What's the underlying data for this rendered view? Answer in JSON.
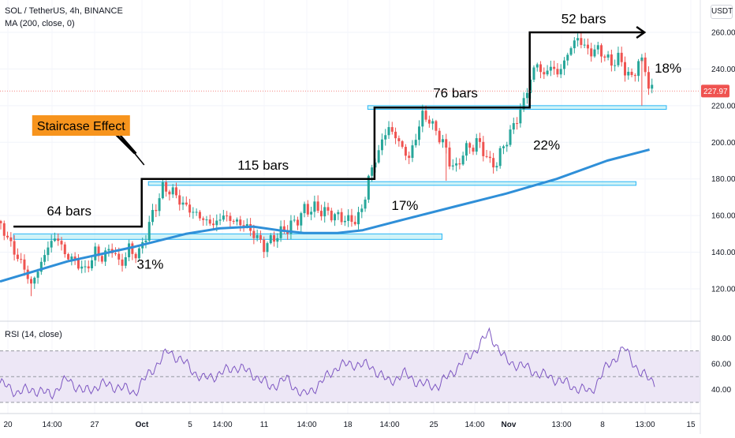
{
  "header": {
    "symbol_line": "SOL / TetherUS, 4h, BINANCE",
    "ma_line": "MA (200, close, 0)",
    "rsi_line": "RSI (14, close)",
    "currency_badge": "USDT"
  },
  "colors": {
    "up": "#26a69a",
    "down": "#ef5350",
    "ma": "#2f8fd8",
    "rsi": "#7e57c2",
    "rsi_band": "#ede7f6",
    "zone_fill": "#b2ebf2",
    "zone_stroke": "#29b6f6",
    "price_badge": "#ef5350",
    "label_box": "#f7941d"
  },
  "chart_data": [
    {
      "type": "candlestick",
      "title": "SOL / TetherUS, 4h, BINANCE",
      "y_unit": "USDT",
      "ylim": [
        105,
        268
      ],
      "yticks": [
        120,
        140,
        160,
        180,
        200,
        220,
        240,
        260
      ],
      "ytick_labels": [
        "120.00",
        "140.00",
        "160.00",
        "180.00",
        "200.00",
        "220.00",
        "240.00",
        "260.00"
      ],
      "x_tick_labels": [
        "20",
        "14:00",
        "27",
        "Oct",
        "5",
        "14:00",
        "11",
        "14:00",
        "18",
        "14:00",
        "25",
        "14:00",
        "Nov",
        "13:00",
        "8",
        "13:00",
        "15"
      ],
      "last_price": "227.97",
      "price_path": [
        {
          "bar": 0,
          "price": 157
        },
        {
          "bar": 5,
          "price": 150
        },
        {
          "bar": 10,
          "price": 140
        },
        {
          "bar": 15,
          "price": 133
        },
        {
          "bar": 20,
          "price": 122
        },
        {
          "bar": 25,
          "price": 132
        },
        {
          "bar": 30,
          "price": 143
        },
        {
          "bar": 35,
          "price": 149
        },
        {
          "bar": 40,
          "price": 139
        },
        {
          "bar": 46,
          "price": 135
        },
        {
          "bar": 52,
          "price": 130
        },
        {
          "bar": 58,
          "price": 140
        },
        {
          "bar": 63,
          "price": 137
        },
        {
          "bar": 68,
          "price": 143
        },
        {
          "bar": 72,
          "price": 133
        },
        {
          "bar": 78,
          "price": 141
        },
        {
          "bar": 84,
          "price": 139
        },
        {
          "bar": 88,
          "price": 150
        },
        {
          "bar": 93,
          "price": 163
        },
        {
          "bar": 98,
          "price": 175
        },
        {
          "bar": 104,
          "price": 173
        },
        {
          "bar": 110,
          "price": 166
        },
        {
          "bar": 116,
          "price": 162
        },
        {
          "bar": 122,
          "price": 158
        },
        {
          "bar": 128,
          "price": 155
        },
        {
          "bar": 134,
          "price": 160
        },
        {
          "bar": 140,
          "price": 157
        },
        {
          "bar": 146,
          "price": 155
        },
        {
          "bar": 152,
          "price": 150
        },
        {
          "bar": 158,
          "price": 143
        },
        {
          "bar": 164,
          "price": 148
        },
        {
          "bar": 170,
          "price": 152
        },
        {
          "bar": 176,
          "price": 156
        },
        {
          "bar": 182,
          "price": 163
        },
        {
          "bar": 188,
          "price": 164
        },
        {
          "bar": 194,
          "price": 162
        },
        {
          "bar": 200,
          "price": 160
        },
        {
          "bar": 206,
          "price": 158
        },
        {
          "bar": 212,
          "price": 157
        },
        {
          "bar": 217,
          "price": 165
        },
        {
          "bar": 220,
          "price": 181
        },
        {
          "bar": 224,
          "price": 190
        },
        {
          "bar": 228,
          "price": 201
        },
        {
          "bar": 232,
          "price": 208
        },
        {
          "bar": 236,
          "price": 203
        },
        {
          "bar": 240,
          "price": 197
        },
        {
          "bar": 244,
          "price": 191
        },
        {
          "bar": 248,
          "price": 203
        },
        {
          "bar": 252,
          "price": 215
        },
        {
          "bar": 256,
          "price": 212
        },
        {
          "bar": 260,
          "price": 206
        },
        {
          "bar": 264,
          "price": 200
        },
        {
          "bar": 268,
          "price": 190
        },
        {
          "bar": 272,
          "price": 185
        },
        {
          "bar": 276,
          "price": 195
        },
        {
          "bar": 280,
          "price": 197
        },
        {
          "bar": 284,
          "price": 200
        },
        {
          "bar": 288,
          "price": 196
        },
        {
          "bar": 292,
          "price": 188
        },
        {
          "bar": 296,
          "price": 189
        },
        {
          "bar": 300,
          "price": 198
        },
        {
          "bar": 304,
          "price": 205
        },
        {
          "bar": 308,
          "price": 213
        },
        {
          "bar": 312,
          "price": 222
        },
        {
          "bar": 316,
          "price": 235
        },
        {
          "bar": 320,
          "price": 243
        },
        {
          "bar": 324,
          "price": 236
        },
        {
          "bar": 328,
          "price": 242
        },
        {
          "bar": 332,
          "price": 237
        },
        {
          "bar": 336,
          "price": 244
        },
        {
          "bar": 340,
          "price": 252
        },
        {
          "bar": 344,
          "price": 257
        },
        {
          "bar": 348,
          "price": 252
        },
        {
          "bar": 352,
          "price": 249
        },
        {
          "bar": 356,
          "price": 251
        },
        {
          "bar": 360,
          "price": 247
        },
        {
          "bar": 364,
          "price": 243
        },
        {
          "bar": 368,
          "price": 246
        },
        {
          "bar": 372,
          "price": 240
        },
        {
          "bar": 376,
          "price": 234
        },
        {
          "bar": 380,
          "price": 245
        },
        {
          "bar": 384,
          "price": 240
        },
        {
          "bar": 387,
          "price": 228
        }
      ],
      "ma200_path": [
        {
          "bar": 0,
          "price": 124
        },
        {
          "bar": 40,
          "price": 135
        },
        {
          "bar": 80,
          "price": 143
        },
        {
          "bar": 110,
          "price": 150
        },
        {
          "bar": 130,
          "price": 153
        },
        {
          "bar": 150,
          "price": 154
        },
        {
          "bar": 165,
          "price": 152
        },
        {
          "bar": 180,
          "price": 150.5
        },
        {
          "bar": 200,
          "price": 150.5
        },
        {
          "bar": 215,
          "price": 152
        },
        {
          "bar": 240,
          "price": 158
        },
        {
          "bar": 270,
          "price": 165
        },
        {
          "bar": 300,
          "price": 172
        },
        {
          "bar": 330,
          "price": 180
        },
        {
          "bar": 360,
          "price": 190
        },
        {
          "bar": 385,
          "price": 196
        }
      ],
      "zones": [
        {
          "bar_start": 8,
          "bar_end": 262,
          "price_top": 150,
          "price_bottom": 147
        },
        {
          "bar_start": 88,
          "bar_end": 377,
          "price_top": 178.5,
          "price_bottom": 176.5
        },
        {
          "bar_start": 218,
          "bar_end": 395,
          "price_top": 220,
          "price_bottom": 218
        }
      ],
      "staircase": [
        {
          "bar": 8,
          "price": 154
        },
        {
          "bar": 84,
          "price": 154
        },
        {
          "bar": 84,
          "price": 180
        },
        {
          "bar": 222,
          "price": 180
        },
        {
          "bar": 222,
          "price": 219
        },
        {
          "bar": 314,
          "price": 219
        },
        {
          "bar": 314,
          "price": 260
        },
        {
          "bar": 382,
          "price": 260
        }
      ],
      "annotations": [
        {
          "text": "64 bars",
          "bar": 41,
          "price": 160
        },
        {
          "text": "115 bars",
          "bar": 156,
          "price": 185
        },
        {
          "text": "76 bars",
          "bar": 270,
          "price": 224.5
        },
        {
          "text": "52 bars",
          "bar": 346,
          "price": 265
        },
        {
          "text": "31%",
          "bar": 89,
          "price": 131
        },
        {
          "text": "17%",
          "bar": 240,
          "price": 163
        },
        {
          "text": "22%",
          "bar": 324,
          "price": 196
        },
        {
          "text": "18%",
          "bar": 396,
          "price": 238
        }
      ],
      "callout": {
        "text": "Staircase Effect",
        "bar": 20,
        "price": 207
      }
    },
    {
      "type": "line",
      "title": "RSI (14, close)",
      "ylim": [
        25,
        90
      ],
      "band": [
        30,
        70
      ],
      "midline": 50,
      "yticks": [
        40,
        60,
        80
      ],
      "ytick_labels": [
        "40.00",
        "60.00",
        "80.00"
      ],
      "x": [
        0,
        10,
        20,
        30,
        40,
        50,
        60,
        70,
        80,
        90,
        100,
        110,
        120,
        130,
        140,
        150,
        160,
        170,
        180,
        190,
        200,
        210,
        220,
        230,
        240,
        250,
        260,
        270,
        280,
        290,
        300,
        310,
        320,
        330,
        340,
        350,
        360,
        370,
        380,
        388
      ],
      "values": [
        45,
        38,
        40,
        36,
        48,
        38,
        44,
        42,
        38,
        55,
        70,
        60,
        48,
        52,
        58,
        52,
        42,
        48,
        35,
        45,
        58,
        60,
        58,
        46,
        52,
        44,
        43,
        56,
        68,
        84,
        62,
        58,
        52,
        48,
        42,
        38,
        58,
        72,
        52,
        46
      ]
    }
  ]
}
